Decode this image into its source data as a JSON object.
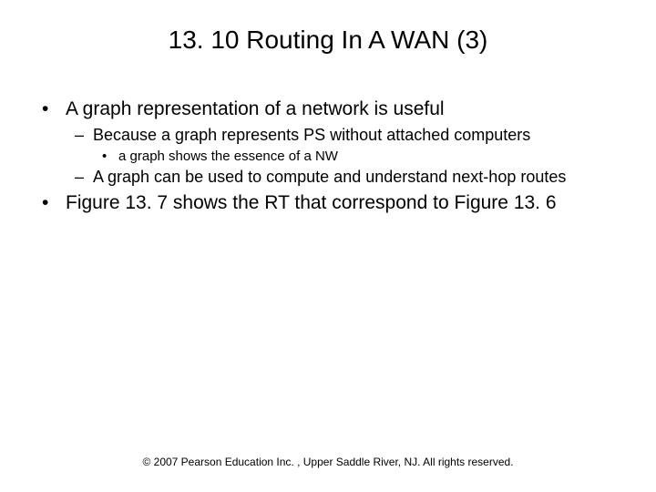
{
  "title": "13. 10 Routing In A WAN (3)",
  "bullets": [
    {
      "text": "A graph representation of a network is useful",
      "children": [
        {
          "text": "Because a graph represents PS without attached computers",
          "children": [
            {
              "text": "a graph shows the essence of a NW"
            }
          ]
        },
        {
          "text": "A graph can be used to compute and understand next-hop routes"
        }
      ]
    },
    {
      "text": "Figure 13. 7 shows the RT that correspond to Figure 13. 6"
    }
  ],
  "footer": "© 2007 Pearson Education Inc. , Upper Saddle River, NJ. All rights reserved.",
  "glyphs": {
    "lvl1": "•",
    "lvl2": "–",
    "lvl3": "•"
  },
  "style": {
    "background_color": "#ffffff",
    "text_color": "#000000",
    "title_fontsize": 28,
    "lvl1_fontsize": 21,
    "lvl2_fontsize": 18,
    "lvl3_fontsize": 15,
    "footer_fontsize": 12,
    "font_family": "Arial"
  }
}
